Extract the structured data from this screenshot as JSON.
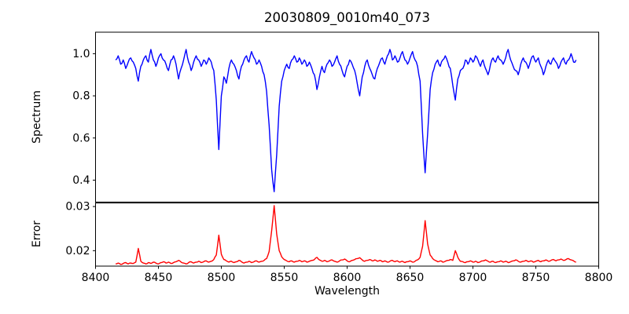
{
  "chart_data": {
    "type": "line",
    "title": "20030809_0010m40_073",
    "xlabel": "Wavelength",
    "grid": false,
    "legend": "none",
    "xlim": [
      8400,
      8800
    ],
    "x_ticks": [
      8400,
      8450,
      8500,
      8550,
      8600,
      8650,
      8700,
      8750,
      8800
    ],
    "x_tick_labels": [
      "8400",
      "8450",
      "8500",
      "8550",
      "8600",
      "8650",
      "8700",
      "8750",
      "8800"
    ],
    "x_start": 8416,
    "x_step": 2,
    "absorption_line_centers": [
      8498,
      8542,
      8662
    ],
    "panels": [
      {
        "name": "spectrum",
        "ylabel": "Spectrum",
        "color": "#0000ff",
        "ylim": [
          0.296,
          1.102
        ],
        "y_ticks": [
          0.4,
          0.6,
          0.8,
          1.0
        ],
        "y_tick_labels": [
          "0.4",
          "0.6",
          "0.8",
          "1.0"
        ],
        "values": [
          0.97,
          0.99,
          0.95,
          0.97,
          0.93,
          0.96,
          0.98,
          0.96,
          0.93,
          0.87,
          0.94,
          0.97,
          0.99,
          0.96,
          1.02,
          0.97,
          0.94,
          0.98,
          1.0,
          0.97,
          0.95,
          0.92,
          0.97,
          0.99,
          0.95,
          0.88,
          0.93,
          0.97,
          1.02,
          0.96,
          0.92,
          0.96,
          0.99,
          0.97,
          0.94,
          0.97,
          0.95,
          0.98,
          0.96,
          0.92,
          0.78,
          0.545,
          0.8,
          0.89,
          0.86,
          0.93,
          0.97,
          0.95,
          0.92,
          0.88,
          0.94,
          0.97,
          0.99,
          0.96,
          1.01,
          0.98,
          0.95,
          0.97,
          0.94,
          0.9,
          0.82,
          0.66,
          0.45,
          0.345,
          0.52,
          0.75,
          0.87,
          0.92,
          0.95,
          0.93,
          0.97,
          0.99,
          0.96,
          0.98,
          0.95,
          0.97,
          0.94,
          0.96,
          0.93,
          0.9,
          0.83,
          0.89,
          0.94,
          0.91,
          0.95,
          0.97,
          0.94,
          0.96,
          0.99,
          0.95,
          0.92,
          0.89,
          0.94,
          0.97,
          0.95,
          0.92,
          0.86,
          0.8,
          0.89,
          0.94,
          0.97,
          0.93,
          0.9,
          0.88,
          0.93,
          0.96,
          0.98,
          0.95,
          0.99,
          1.02,
          0.97,
          0.99,
          0.96,
          0.98,
          1.01,
          0.97,
          0.95,
          0.98,
          1.01,
          0.97,
          0.94,
          0.87,
          0.62,
          0.435,
          0.62,
          0.83,
          0.91,
          0.95,
          0.97,
          0.94,
          0.97,
          0.99,
          0.96,
          0.93,
          0.85,
          0.78,
          0.88,
          0.92,
          0.93,
          0.97,
          0.95,
          0.98,
          0.96,
          0.99,
          0.97,
          0.94,
          0.97,
          0.93,
          0.9,
          0.95,
          0.98,
          0.96,
          0.99,
          0.97,
          0.95,
          0.98,
          1.02,
          0.97,
          0.94,
          0.92,
          0.9,
          0.95,
          0.98,
          0.96,
          0.93,
          0.97,
          0.99,
          0.96,
          0.98,
          0.94,
          0.9,
          0.94,
          0.97,
          0.95,
          0.98,
          0.96,
          0.93,
          0.96,
          0.98,
          0.95,
          0.97,
          1.0,
          0.96,
          0.97
        ]
      },
      {
        "name": "error",
        "ylabel": "Error",
        "color": "#ff0000",
        "ylim": [
          0.0165,
          0.0308
        ],
        "y_ticks": [
          0.02,
          0.03
        ],
        "y_tick_labels": [
          "0.02",
          "0.03"
        ],
        "values": [
          0.017,
          0.0172,
          0.0169,
          0.0171,
          0.0173,
          0.017,
          0.0172,
          0.0171,
          0.0174,
          0.0205,
          0.0176,
          0.0172,
          0.017,
          0.0173,
          0.0171,
          0.0174,
          0.0172,
          0.017,
          0.0173,
          0.0175,
          0.0172,
          0.0174,
          0.0171,
          0.0173,
          0.0175,
          0.0178,
          0.0174,
          0.0172,
          0.017,
          0.0173,
          0.0175,
          0.0172,
          0.0174,
          0.0176,
          0.0173,
          0.0175,
          0.0177,
          0.0174,
          0.0176,
          0.018,
          0.019,
          0.0235,
          0.0192,
          0.018,
          0.0177,
          0.0174,
          0.0176,
          0.0173,
          0.0175,
          0.0178,
          0.0175,
          0.0172,
          0.0174,
          0.0176,
          0.0173,
          0.0175,
          0.0177,
          0.0174,
          0.0176,
          0.0178,
          0.0182,
          0.0198,
          0.0245,
          0.0302,
          0.0238,
          0.02,
          0.0186,
          0.018,
          0.0177,
          0.0175,
          0.0177,
          0.0174,
          0.0176,
          0.0178,
          0.0175,
          0.0177,
          0.0174,
          0.0176,
          0.0178,
          0.018,
          0.0185,
          0.0179,
          0.0176,
          0.0178,
          0.0175,
          0.0177,
          0.0179,
          0.0176,
          0.0174,
          0.0177,
          0.0179,
          0.0181,
          0.0177,
          0.0175,
          0.0178,
          0.018,
          0.0182,
          0.0184,
          0.0179,
          0.0176,
          0.0178,
          0.018,
          0.0177,
          0.0179,
          0.0176,
          0.0178,
          0.0175,
          0.0177,
          0.0174,
          0.0176,
          0.0178,
          0.0175,
          0.0177,
          0.0174,
          0.0176,
          0.0173,
          0.0175,
          0.0177,
          0.0174,
          0.0176,
          0.0179,
          0.0185,
          0.021,
          0.0268,
          0.0215,
          0.019,
          0.0182,
          0.0178,
          0.0175,
          0.0177,
          0.0174,
          0.0176,
          0.0178,
          0.018,
          0.0178,
          0.02,
          0.0185,
          0.0176,
          0.0175,
          0.0173,
          0.0175,
          0.0177,
          0.0174,
          0.0176,
          0.0173,
          0.0175,
          0.0177,
          0.0179,
          0.0176,
          0.0174,
          0.0176,
          0.0173,
          0.0175,
          0.0177,
          0.0174,
          0.0176,
          0.0173,
          0.0175,
          0.0177,
          0.0179,
          0.0176,
          0.0174,
          0.0176,
          0.0178,
          0.0175,
          0.0177,
          0.0174,
          0.0176,
          0.0178,
          0.0175,
          0.0177,
          0.0179,
          0.0176,
          0.0178,
          0.018,
          0.0177,
          0.0179,
          0.0181,
          0.0178,
          0.018,
          0.0182,
          0.0179,
          0.0177,
          0.0174
        ]
      }
    ]
  }
}
